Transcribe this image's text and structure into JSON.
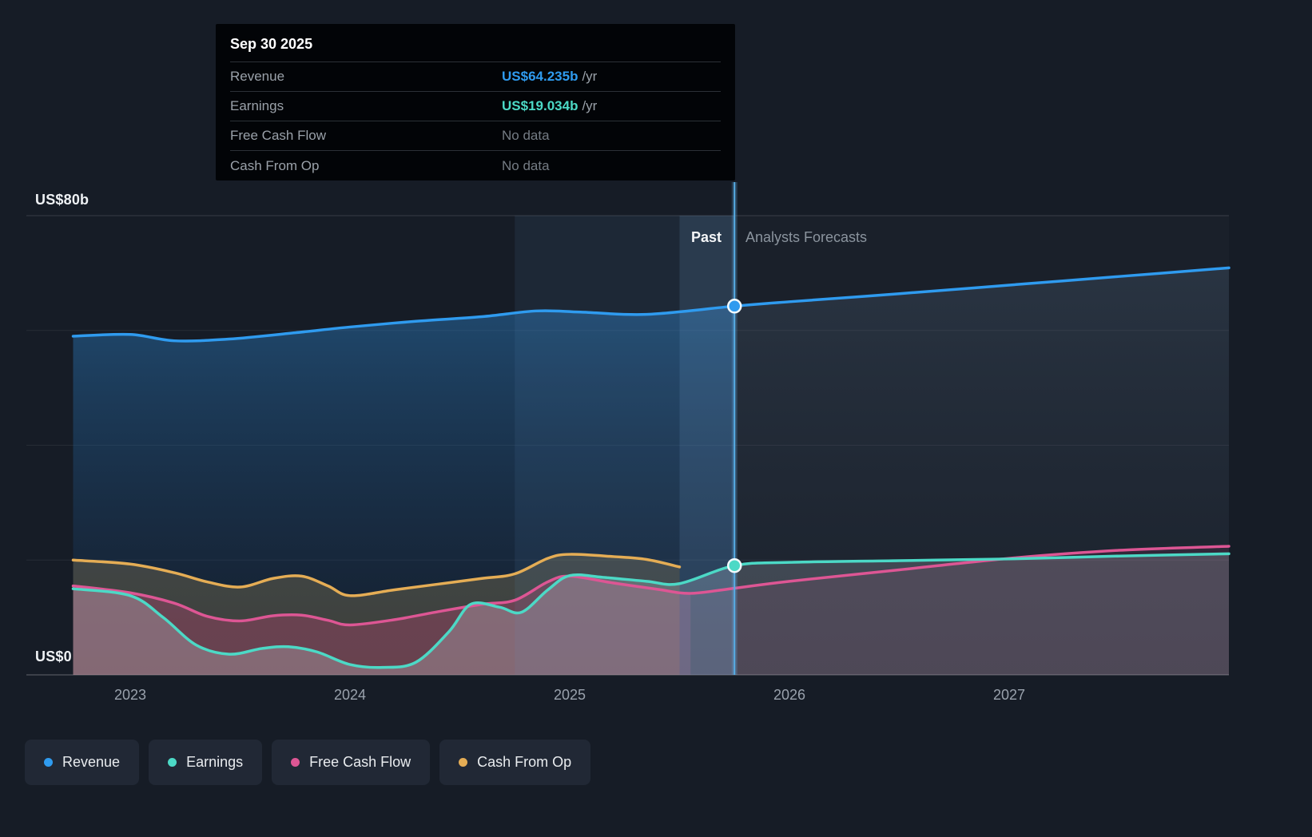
{
  "colors": {
    "revenue": "#2f9bef",
    "earnings": "#4cd9c6",
    "fcf": "#dd5694",
    "cashop": "#e5ad55",
    "divider": "#57aee6",
    "background": "#161c26"
  },
  "tooltip": {
    "date": "Sep 30 2025",
    "rows": [
      {
        "label": "Revenue",
        "value": "US$64.235b",
        "suffix": "/yr",
        "color_key": "revenue"
      },
      {
        "label": "Earnings",
        "value": "US$19.034b",
        "suffix": "/yr",
        "color_key": "earnings"
      },
      {
        "label": "Free Cash Flow",
        "value": "No data",
        "suffix": "",
        "color_key": null
      },
      {
        "label": "Cash From Op",
        "value": "No data",
        "suffix": "",
        "color_key": null
      }
    ]
  },
  "axis": {
    "y_top_label": "US$80b",
    "y_bottom_label": "US$0",
    "x_ticks": [
      "2023",
      "2024",
      "2025",
      "2026",
      "2027"
    ]
  },
  "divider": {
    "past_label": "Past",
    "forecast_label": "Analysts Forecasts"
  },
  "legend": [
    {
      "label": "Revenue",
      "color_key": "revenue"
    },
    {
      "label": "Earnings",
      "color_key": "earnings"
    },
    {
      "label": "Free Cash Flow",
      "color_key": "fcf"
    },
    {
      "label": "Cash From Op",
      "color_key": "cashop"
    }
  ],
  "chart_data": {
    "type": "area",
    "title": "Revenue, Earnings, Free Cash Flow and Cash From Op history and forecast (US$ billions per year)",
    "x_unit": "calendar year (decimal)",
    "xlim": [
      2022.6,
      2028.0
    ],
    "ylim": [
      0,
      80
    ],
    "y_gridlines": [
      20,
      40,
      60,
      80
    ],
    "divider_x": 2025.75,
    "highlight_bands": [
      {
        "x1": 2024.75,
        "x2": 2025.75,
        "color": "rgba(96,146,198,0.10)"
      },
      {
        "x1": 2025.5,
        "x2": 2025.75,
        "color": "rgba(130,178,226,0.14)"
      }
    ],
    "markers": [
      {
        "series": "Revenue",
        "x": 2025.75,
        "value": 64.235
      },
      {
        "series": "Earnings",
        "x": 2025.75,
        "value": 19.034
      }
    ],
    "series": [
      {
        "name": "Revenue",
        "color": "#2f9bef",
        "area_gradient_past": [
          "rgba(42,118,182,0.50)",
          "rgba(18,44,78,0.20)"
        ],
        "area_gradient_forecast": [
          "rgba(96,124,152,0.22)",
          "rgba(50,66,88,0.05)"
        ],
        "past": [
          [
            2022.74,
            59.0
          ],
          [
            2023.0,
            59.3
          ],
          [
            2023.2,
            58.2
          ],
          [
            2023.45,
            58.5
          ],
          [
            2023.75,
            59.6
          ],
          [
            2024.0,
            60.6
          ],
          [
            2024.3,
            61.6
          ],
          [
            2024.6,
            62.4
          ],
          [
            2024.85,
            63.4
          ],
          [
            2025.05,
            63.2
          ],
          [
            2025.35,
            62.8
          ],
          [
            2025.75,
            64.235
          ]
        ],
        "forecast": [
          [
            2025.75,
            64.235
          ],
          [
            2026.0,
            65.0
          ],
          [
            2026.5,
            66.4
          ],
          [
            2027.0,
            67.9
          ],
          [
            2027.5,
            69.4
          ],
          [
            2028.0,
            70.9
          ]
        ]
      },
      {
        "name": "Earnings",
        "color": "#4cd9c6",
        "fill_past": "rgba(215,224,232,0.25)",
        "fill_forecast": "rgba(205,215,225,0.20)",
        "past": [
          [
            2022.74,
            15.0
          ],
          [
            2023.0,
            13.8
          ],
          [
            2023.15,
            10.0
          ],
          [
            2023.3,
            5.2
          ],
          [
            2023.45,
            3.6
          ],
          [
            2023.6,
            4.6
          ],
          [
            2023.72,
            4.9
          ],
          [
            2023.85,
            4.0
          ],
          [
            2024.0,
            1.8
          ],
          [
            2024.15,
            1.3
          ],
          [
            2024.3,
            2.2
          ],
          [
            2024.45,
            7.5
          ],
          [
            2024.55,
            12.3
          ],
          [
            2024.68,
            11.8
          ],
          [
            2024.78,
            10.9
          ],
          [
            2024.9,
            14.8
          ],
          [
            2025.0,
            17.3
          ],
          [
            2025.15,
            17.0
          ],
          [
            2025.35,
            16.3
          ],
          [
            2025.5,
            15.9
          ],
          [
            2025.75,
            19.034
          ]
        ],
        "forecast": [
          [
            2025.75,
            19.034
          ],
          [
            2026.0,
            19.6
          ],
          [
            2026.5,
            19.9
          ],
          [
            2027.0,
            20.2
          ],
          [
            2027.5,
            20.7
          ],
          [
            2028.0,
            21.1
          ]
        ]
      },
      {
        "name": "Free Cash Flow",
        "color": "#dd5694",
        "fill_past": "rgba(214,72,128,0.28)",
        "fill_forecast": "rgba(214,72,128,0.10)",
        "past": [
          [
            2022.74,
            15.5
          ],
          [
            2023.0,
            14.3
          ],
          [
            2023.2,
            12.5
          ],
          [
            2023.35,
            10.2
          ],
          [
            2023.5,
            9.4
          ],
          [
            2023.65,
            10.3
          ],
          [
            2023.78,
            10.4
          ],
          [
            2023.9,
            9.5
          ],
          [
            2024.0,
            8.7
          ],
          [
            2024.2,
            9.6
          ],
          [
            2024.4,
            11.0
          ],
          [
            2024.6,
            12.3
          ],
          [
            2024.75,
            13.0
          ],
          [
            2024.9,
            16.2
          ],
          [
            2025.0,
            17.2
          ],
          [
            2025.2,
            16.0
          ],
          [
            2025.4,
            14.9
          ],
          [
            2025.55,
            14.2
          ]
        ],
        "forecast": [
          [
            2025.55,
            14.2
          ],
          [
            2025.75,
            15.1
          ],
          [
            2026.0,
            16.3
          ],
          [
            2026.5,
            18.3
          ],
          [
            2027.0,
            20.3
          ],
          [
            2027.5,
            21.7
          ],
          [
            2028.0,
            22.4
          ]
        ]
      },
      {
        "name": "Cash From Op",
        "color": "#e5ad55",
        "fill_past": "rgba(196,168,100,0.24)",
        "fill_forecast": null,
        "past": [
          [
            2022.74,
            20.0
          ],
          [
            2023.0,
            19.3
          ],
          [
            2023.2,
            17.8
          ],
          [
            2023.35,
            16.2
          ],
          [
            2023.5,
            15.3
          ],
          [
            2023.65,
            16.8
          ],
          [
            2023.78,
            17.2
          ],
          [
            2023.9,
            15.5
          ],
          [
            2024.0,
            13.8
          ],
          [
            2024.2,
            14.8
          ],
          [
            2024.4,
            15.8
          ],
          [
            2024.6,
            16.8
          ],
          [
            2024.75,
            17.6
          ],
          [
            2024.9,
            20.3
          ],
          [
            2025.0,
            21.0
          ],
          [
            2025.2,
            20.6
          ],
          [
            2025.35,
            20.1
          ],
          [
            2025.5,
            18.8
          ]
        ],
        "forecast": []
      }
    ]
  }
}
